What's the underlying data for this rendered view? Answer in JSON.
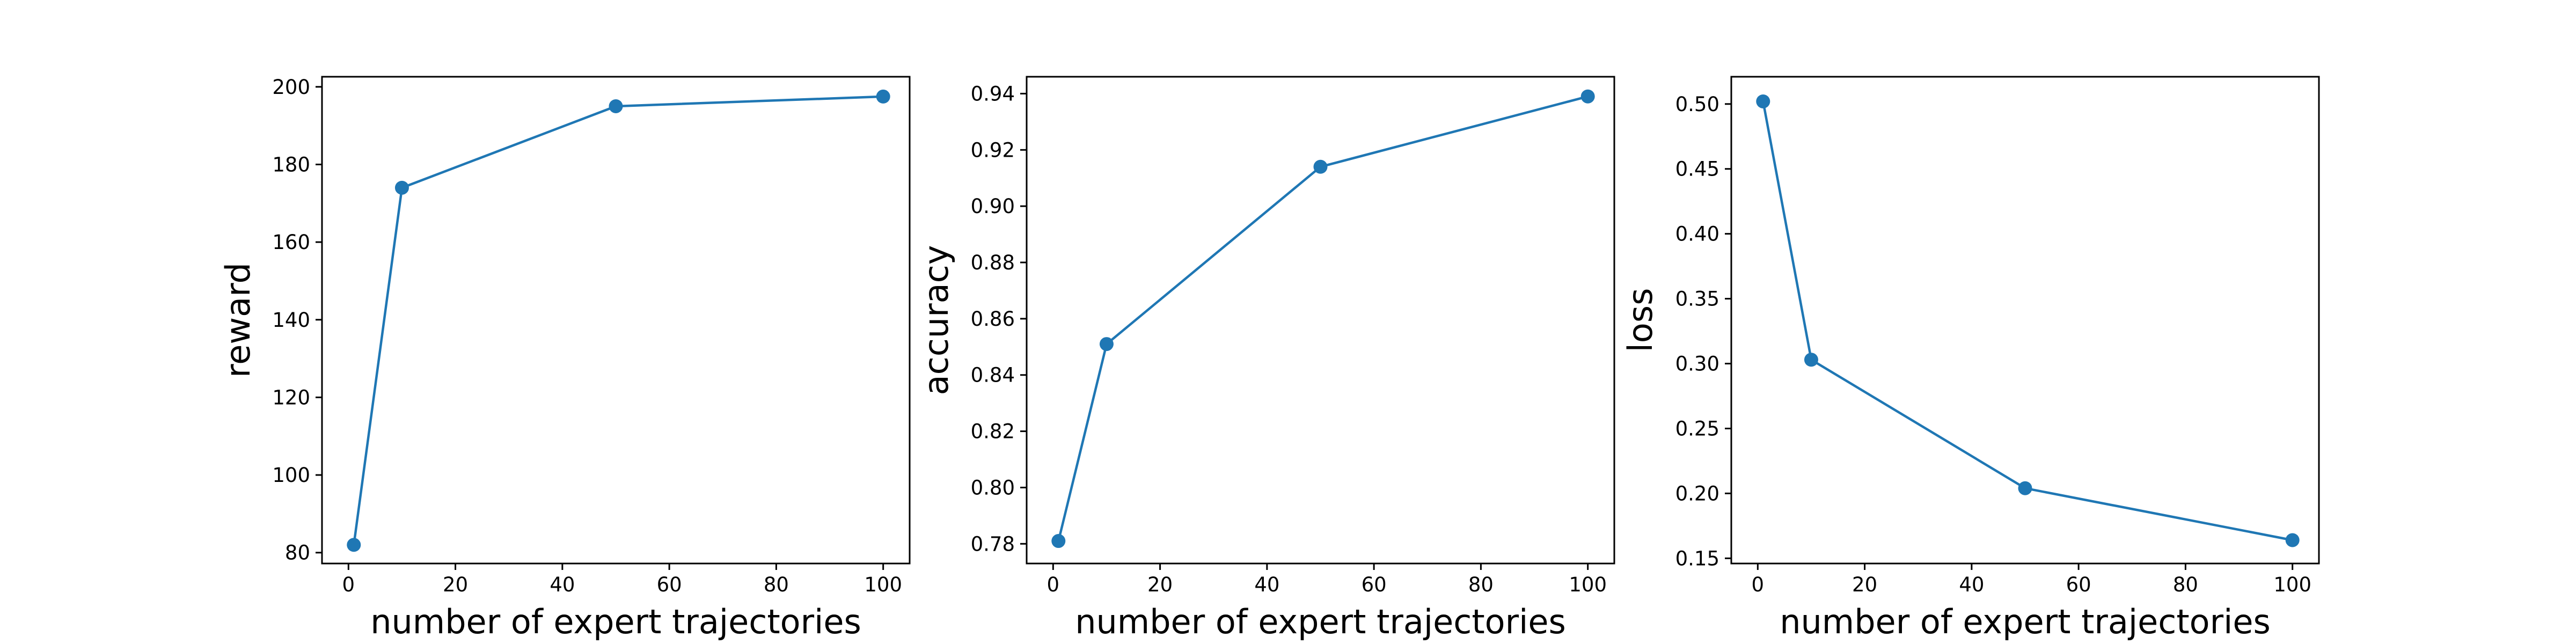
{
  "colors": {
    "series": "#1f77b4",
    "axes": "#000000",
    "background": "#ffffff"
  },
  "chart_data": [
    {
      "type": "line",
      "xlabel": "number of expert trajectories",
      "ylabel": "reward",
      "xlim": [
        -4.95,
        104.95
      ],
      "ylim": [
        77.2,
        202.6
      ],
      "xticks": [
        0,
        20,
        40,
        60,
        80,
        100
      ],
      "yticks": [
        80,
        100,
        120,
        140,
        160,
        180,
        200
      ],
      "ytick_labels": [
        "80",
        "100",
        "120",
        "140",
        "160",
        "180",
        "200"
      ],
      "grid": false,
      "series": [
        {
          "x": [
            1,
            10,
            50,
            100
          ],
          "y": [
            82.0,
            174.0,
            195.0,
            197.5
          ]
        }
      ]
    },
    {
      "type": "line",
      "xlabel": "number of expert trajectories",
      "ylabel": "accuracy",
      "xlim": [
        -4.95,
        104.95
      ],
      "ylim": [
        0.773,
        0.946
      ],
      "xticks": [
        0,
        20,
        40,
        60,
        80,
        100
      ],
      "yticks": [
        0.78,
        0.8,
        0.82,
        0.84,
        0.86,
        0.88,
        0.9,
        0.92,
        0.94
      ],
      "ytick_labels": [
        "0.78",
        "0.80",
        "0.82",
        "0.84",
        "0.86",
        "0.88",
        "0.90",
        "0.92",
        "0.94"
      ],
      "grid": false,
      "series": [
        {
          "x": [
            1,
            10,
            50,
            100
          ],
          "y": [
            0.781,
            0.851,
            0.914,
            0.939
          ]
        }
      ]
    },
    {
      "type": "line",
      "xlabel": "number of expert trajectories",
      "ylabel": "loss",
      "xlim": [
        -4.95,
        104.95
      ],
      "ylim": [
        0.146,
        0.521
      ],
      "xticks": [
        0,
        20,
        40,
        60,
        80,
        100
      ],
      "yticks": [
        0.15,
        0.2,
        0.25,
        0.3,
        0.35,
        0.4,
        0.45,
        0.5
      ],
      "ytick_labels": [
        "0.15",
        "0.20",
        "0.25",
        "0.30",
        "0.35",
        "0.40",
        "0.45",
        "0.50"
      ],
      "grid": false,
      "series": [
        {
          "x": [
            1,
            10,
            50,
            100
          ],
          "y": [
            0.502,
            0.303,
            0.204,
            0.164
          ]
        }
      ]
    }
  ]
}
